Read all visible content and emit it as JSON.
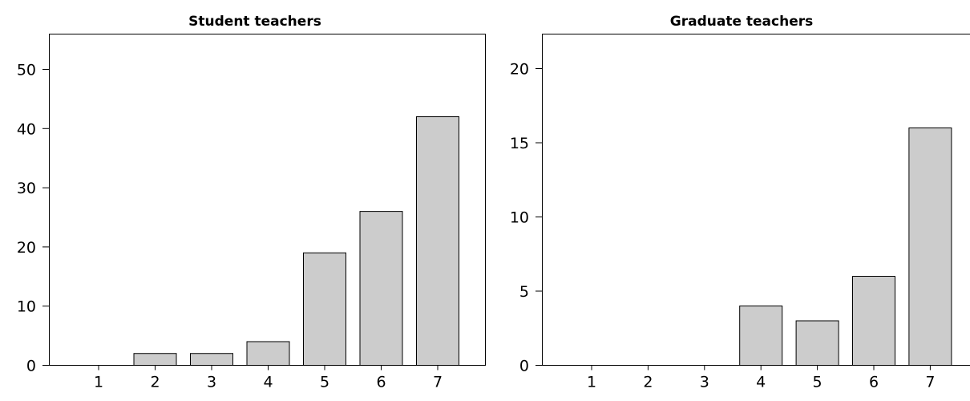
{
  "chart_data": [
    {
      "type": "bar",
      "title": "Student teachers",
      "xlabel": "",
      "ylabel": "",
      "categories": [
        "1",
        "2",
        "3",
        "4",
        "5",
        "6",
        "7"
      ],
      "values": [
        0,
        2,
        2,
        4,
        19,
        26,
        42
      ],
      "ylim": [
        0,
        54
      ],
      "yticks": [
        "0",
        "10",
        "20",
        "30",
        "40",
        "50"
      ],
      "grid": false,
      "bar_color": "#cccccc"
    },
    {
      "type": "bar",
      "title": "Graduate teachers",
      "xlabel": "",
      "ylabel": "",
      "categories": [
        "1",
        "2",
        "3",
        "4",
        "5",
        "6",
        "7"
      ],
      "values": [
        0,
        0,
        0,
        4,
        3,
        6,
        16
      ],
      "ylim": [
        0,
        22
      ],
      "yticks": [
        "0",
        "5",
        "10",
        "15",
        "20"
      ],
      "grid": false,
      "bar_color": "#cccccc"
    }
  ]
}
